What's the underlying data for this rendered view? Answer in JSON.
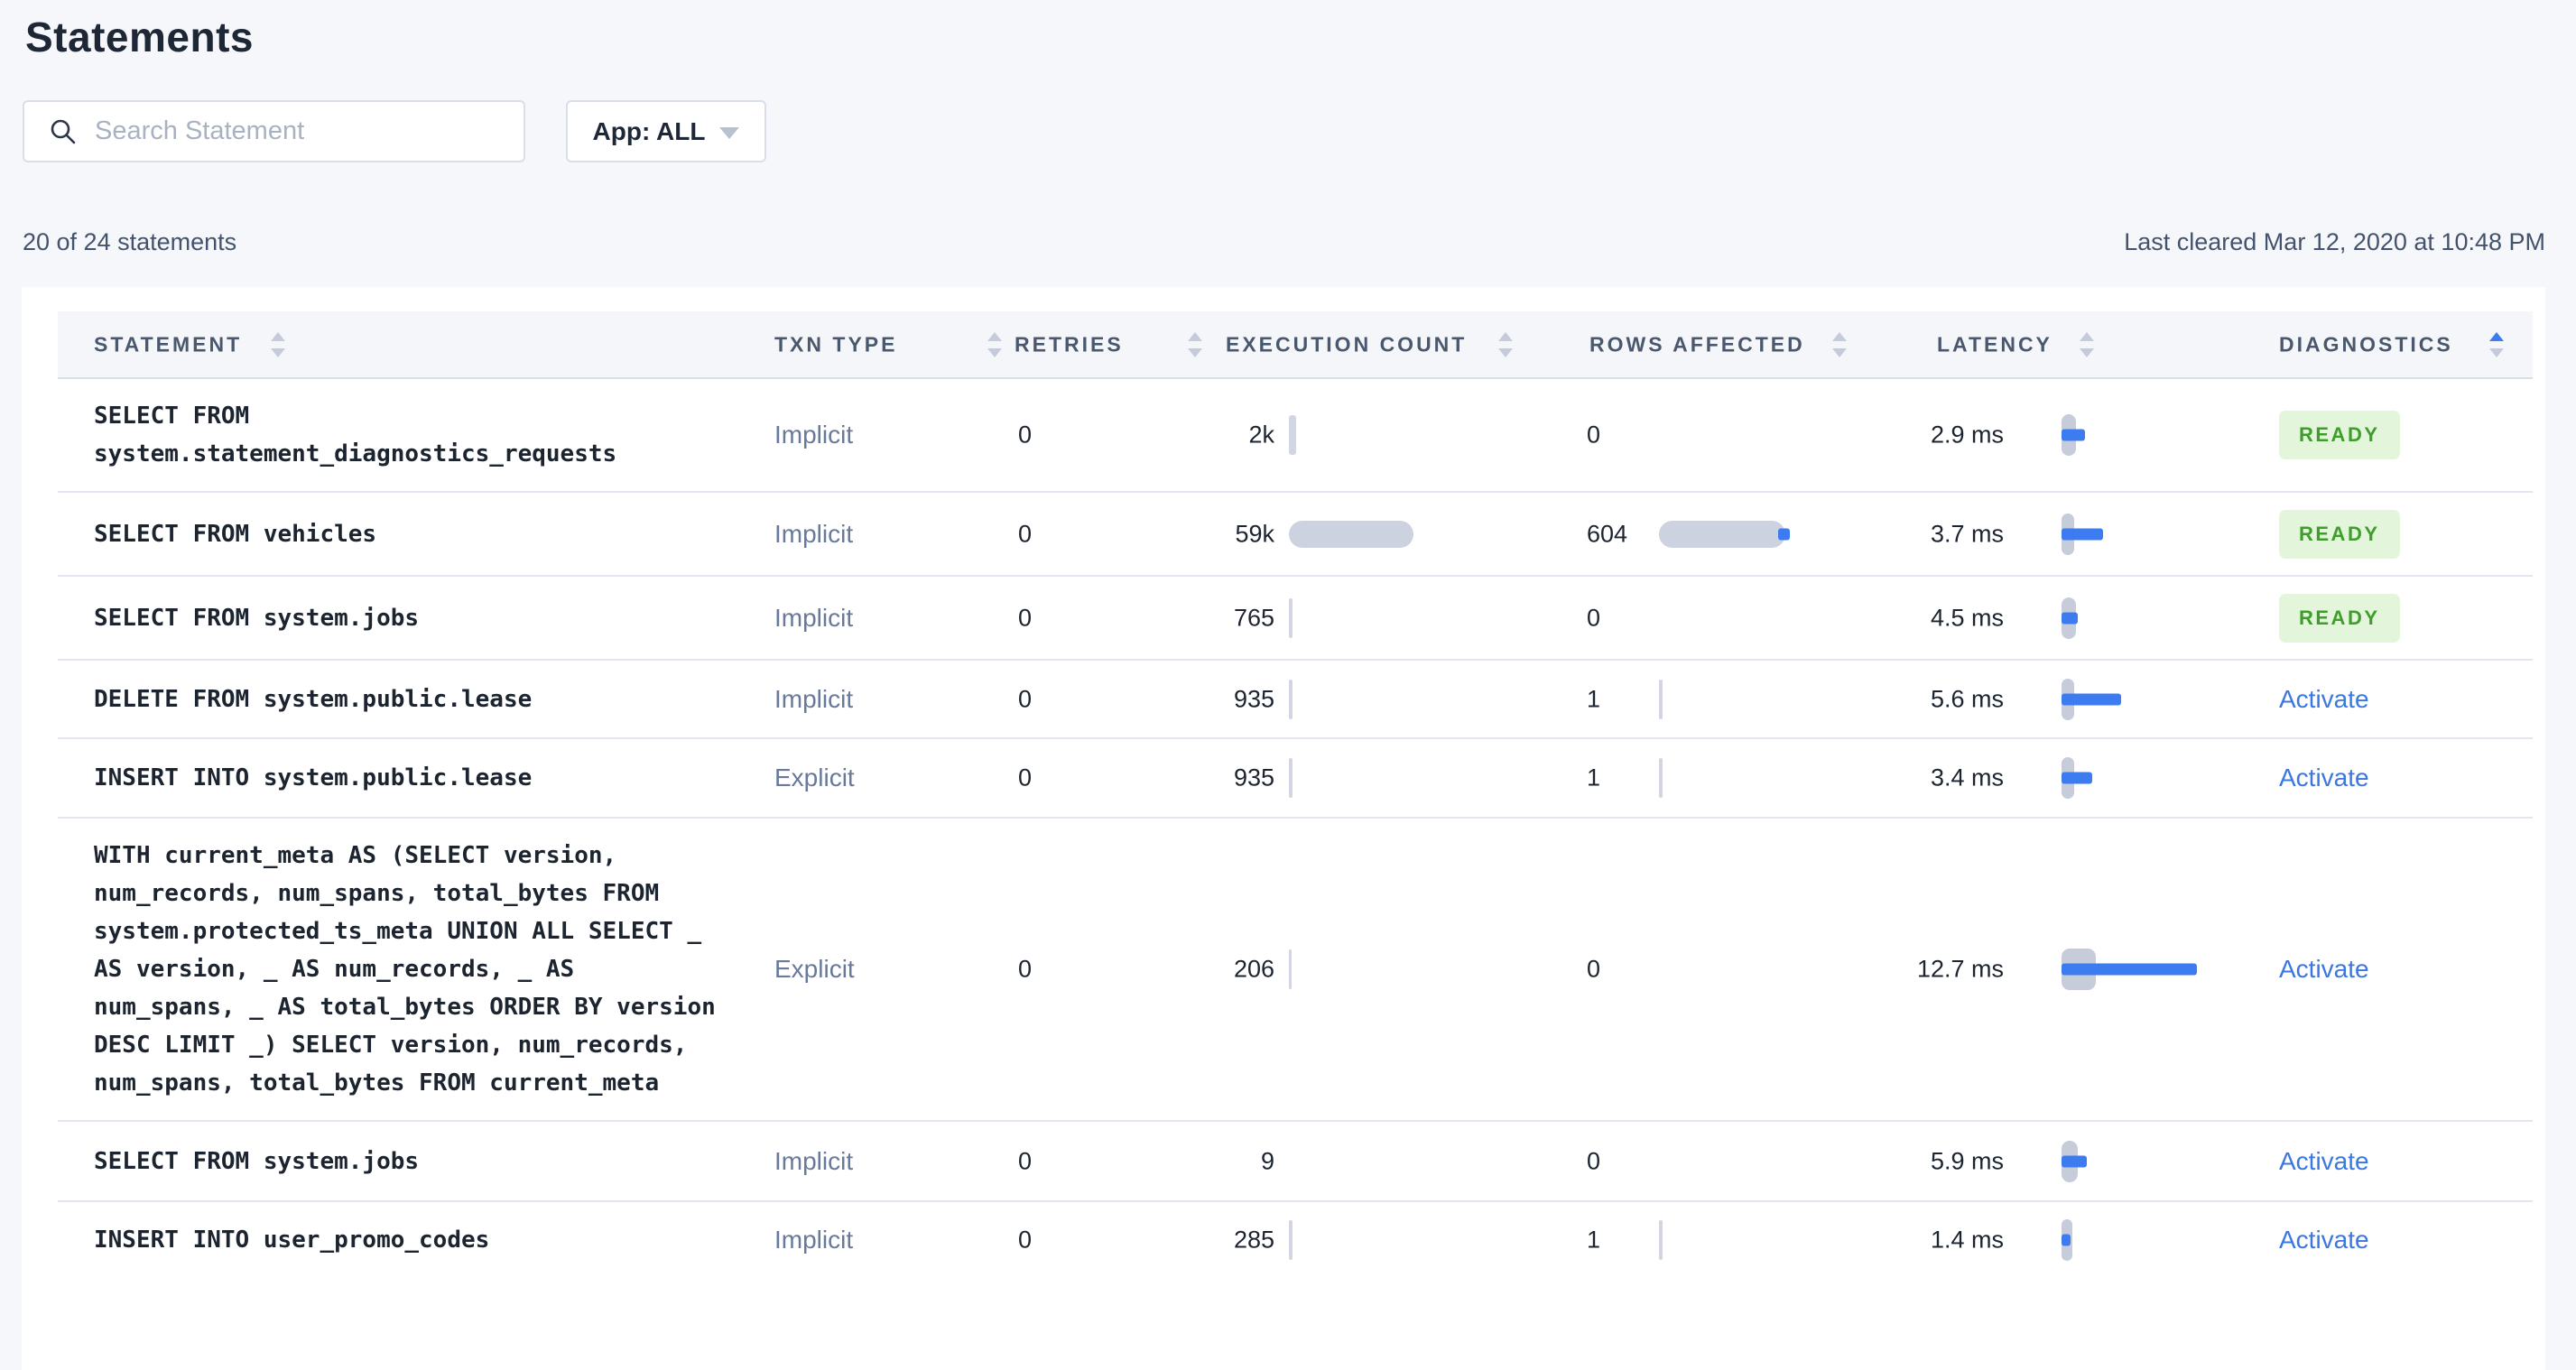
{
  "page": {
    "title": "Statements"
  },
  "toolbar": {
    "search_placeholder": "Search Statement",
    "app_filter_label": "App: ALL"
  },
  "statusbar": {
    "count_text": "20 of 24 statements",
    "last_cleared": "Last cleared Mar 12, 2020 at 10:48 PM"
  },
  "colors": {
    "accent_blue": "#3d7bf0",
    "link_blue": "#3a77e0",
    "success_green": "#3f9e2b",
    "badge_bg": "#e3f6db",
    "bar_gray": "#cdd2e0",
    "page_bg": "#f5f7fa"
  },
  "table": {
    "columns": {
      "statement": "STATEMENT",
      "txn_type": "TXN TYPE",
      "retries": "RETRIES",
      "execution_count": "EXECUTION COUNT",
      "rows_affected": "ROWS AFFECTED",
      "latency": "LATENCY",
      "diagnostics": "DIAGNOSTICS"
    },
    "sort": {
      "active_column": "DIAGNOSTICS",
      "direction": "asc"
    },
    "rows": [
      {
        "statement": "SELECT FROM\nsystem.statement_diagnostics_requests",
        "txn_type": "Implicit",
        "retries": "0",
        "execution_count": "2k",
        "exec_bar_w": 8,
        "rows_affected": "0",
        "rows_bar_w": 0,
        "rows_bar_dot": false,
        "latency": "2.9 ms",
        "lat_cap_w": 16,
        "lat_bar_w": 26,
        "diagnostics": "READY",
        "diagnostics_type": "badge"
      },
      {
        "statement": "SELECT FROM vehicles",
        "txn_type": "Implicit",
        "retries": "0",
        "execution_count": "59k",
        "exec_bar_w": 138,
        "rows_affected": "604",
        "rows_bar_w": 140,
        "rows_bar_dot": true,
        "latency": "3.7 ms",
        "lat_cap_w": 14,
        "lat_bar_w": 46,
        "diagnostics": "READY",
        "diagnostics_type": "badge"
      },
      {
        "statement": "SELECT FROM system.jobs",
        "txn_type": "Implicit",
        "retries": "0",
        "execution_count": "765",
        "exec_bar_w": 4,
        "rows_affected": "0",
        "rows_bar_w": 0,
        "rows_bar_dot": false,
        "latency": "4.5 ms",
        "lat_cap_w": 16,
        "lat_bar_w": 18,
        "diagnostics": "READY",
        "diagnostics_type": "badge"
      },
      {
        "statement": "DELETE FROM system.public.lease",
        "txn_type": "Implicit",
        "retries": "0",
        "execution_count": "935",
        "exec_bar_w": 4,
        "rows_affected": "1",
        "rows_bar_w": 4,
        "rows_bar_dot": false,
        "latency": "5.6 ms",
        "lat_cap_w": 14,
        "lat_bar_w": 66,
        "diagnostics": "Activate",
        "diagnostics_type": "link"
      },
      {
        "statement": "INSERT INTO system.public.lease",
        "txn_type": "Explicit",
        "retries": "0",
        "execution_count": "935",
        "exec_bar_w": 4,
        "rows_affected": "1",
        "rows_bar_w": 4,
        "rows_bar_dot": false,
        "latency": "3.4 ms",
        "lat_cap_w": 14,
        "lat_bar_w": 34,
        "diagnostics": "Activate",
        "diagnostics_type": "link"
      },
      {
        "statement": "WITH current_meta AS (SELECT version,\nnum_records, num_spans, total_bytes FROM\nsystem.protected_ts_meta UNION ALL SELECT _\nAS version, _ AS num_records, _ AS\nnum_spans, _ AS total_bytes ORDER BY version\nDESC LIMIT _) SELECT version, num_records,\nnum_spans, total_bytes FROM current_meta",
        "txn_type": "Explicit",
        "retries": "0",
        "execution_count": "206",
        "exec_bar_w": 3,
        "rows_affected": "0",
        "rows_bar_w": 0,
        "rows_bar_dot": false,
        "latency": "12.7 ms",
        "lat_cap_w": 38,
        "lat_bar_w": 150,
        "diagnostics": "Activate",
        "diagnostics_type": "link"
      },
      {
        "statement": "SELECT FROM system.jobs",
        "txn_type": "Implicit",
        "retries": "0",
        "execution_count": "9",
        "exec_bar_w": 0,
        "rows_affected": "0",
        "rows_bar_w": 0,
        "rows_bar_dot": false,
        "latency": "5.9 ms",
        "lat_cap_w": 18,
        "lat_bar_w": 28,
        "diagnostics": "Activate",
        "diagnostics_type": "link"
      },
      {
        "statement": "INSERT INTO user_promo_codes",
        "txn_type": "Implicit",
        "retries": "0",
        "execution_count": "285",
        "exec_bar_w": 4,
        "rows_affected": "1",
        "rows_bar_w": 4,
        "rows_bar_dot": false,
        "latency": "1.4 ms",
        "lat_cap_w": 12,
        "lat_bar_w": 10,
        "diagnostics": "Activate",
        "diagnostics_type": "link"
      }
    ]
  }
}
